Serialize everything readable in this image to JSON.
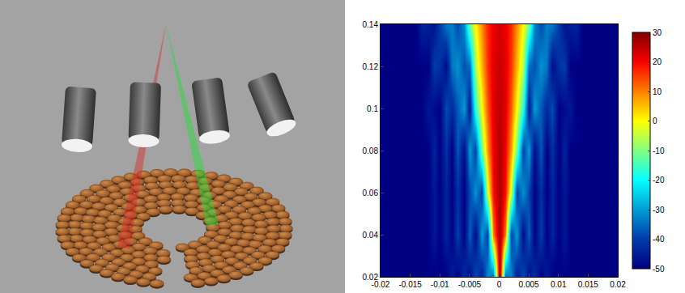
{
  "chart_data": {
    "type": "heatmap",
    "x": [
      -0.02,
      -0.019,
      -0.018,
      -0.017,
      -0.016,
      -0.015,
      -0.014,
      -0.013,
      -0.012,
      -0.011,
      -0.01,
      -0.009,
      -0.008,
      -0.007,
      -0.006,
      -0.005,
      -0.004,
      -0.003,
      -0.002,
      -0.001,
      0,
      0.001,
      0.002,
      0.003,
      0.004,
      0.005,
      0.006,
      0.007,
      0.008,
      0.009,
      0.01,
      0.011,
      0.012,
      0.013,
      0.014,
      0.015,
      0.016,
      0.017,
      0.018,
      0.019,
      0.02
    ],
    "y": [
      0.02,
      0.04,
      0.06,
      0.08,
      0.1,
      0.12,
      0.14
    ],
    "z": [
      [
        -50,
        -50,
        -50,
        -50,
        -50,
        -50,
        -50,
        -50,
        -50,
        -50,
        -50,
        -50,
        -45,
        -50,
        -42,
        -48,
        -38,
        -45,
        -32,
        -35,
        30,
        -35,
        -32,
        -45,
        -38,
        -48,
        -42,
        -50,
        -45,
        -50,
        -50,
        -50,
        -50,
        -50,
        -50,
        -50,
        -50,
        -50,
        -50,
        -50,
        -50
      ],
      [
        -50,
        -50,
        -50,
        -50,
        -50,
        -50,
        -50,
        -50,
        -50,
        -46,
        -50,
        -44,
        -50,
        -40,
        -50,
        -36,
        -48,
        -30,
        -40,
        10,
        28,
        10,
        -40,
        -30,
        -48,
        -36,
        -50,
        -40,
        -50,
        -44,
        -50,
        -46,
        -50,
        -50,
        -50,
        -50,
        -50,
        -50,
        -50,
        -50,
        -50
      ],
      [
        -50,
        -50,
        -50,
        -50,
        -50,
        -50,
        -50,
        -50,
        -50,
        -46,
        -50,
        -44,
        -50,
        -42,
        -50,
        -39,
        -31,
        -40,
        -3,
        19,
        27,
        19,
        -3,
        -40,
        -31,
        -39,
        -50,
        -42,
        -50,
        -44,
        -50,
        -46,
        -50,
        -50,
        -50,
        -50,
        -50,
        -50,
        -50,
        -50,
        -50
      ],
      [
        -50,
        -50,
        -50,
        -50,
        -50,
        -50,
        -50,
        -50,
        -50,
        -44,
        -50,
        -42,
        -50,
        -37,
        -48,
        -30,
        -40,
        -11,
        8,
        21,
        26,
        21,
        8,
        -11,
        -40,
        -30,
        -48,
        -37,
        -50,
        -42,
        -50,
        -44,
        -50,
        -50,
        -50,
        -50,
        -50,
        -50,
        -50,
        -50,
        -50
      ],
      [
        -50,
        -50,
        -50,
        -50,
        -50,
        -50,
        -50,
        -50,
        -46,
        -48,
        -50,
        -38,
        -43,
        -37,
        -30,
        -45,
        -17,
        0,
        13,
        22,
        25,
        22,
        13,
        0,
        -17,
        -45,
        -30,
        -37,
        -43,
        -38,
        -50,
        -48,
        -46,
        -50,
        -50,
        -50,
        -50,
        -50,
        -50,
        -50,
        -50
      ],
      [
        -50,
        -50,
        -50,
        -50,
        -50,
        -50,
        -50,
        -50,
        -50,
        -40,
        -42,
        -48,
        -34,
        -31,
        -38,
        -35,
        -6,
        6,
        16,
        22,
        24,
        22,
        16,
        6,
        -6,
        -35,
        -38,
        -31,
        -34,
        -48,
        -42,
        -40,
        -50,
        -50,
        -50,
        -50,
        -50,
        -50,
        -50,
        -50,
        -50
      ],
      [
        -50,
        -50,
        -50,
        -50,
        -50,
        -50,
        -50,
        -44,
        -45,
        -47,
        -40,
        -34,
        -33,
        -39,
        -32,
        -11,
        0,
        9,
        17,
        21,
        23,
        21,
        17,
        9,
        0,
        -11,
        -32,
        -39,
        -33,
        -34,
        -40,
        -47,
        -45,
        -44,
        -50,
        -50,
        -50,
        -50,
        -50,
        -50,
        -50
      ]
    ],
    "xlim": [
      -0.02,
      0.02
    ],
    "ylim": [
      0.02,
      0.14
    ],
    "xticks": [
      -0.02,
      -0.015,
      -0.01,
      -0.005,
      0,
      0.005,
      0.01,
      0.015,
      0.02
    ],
    "yticks": [
      0.02,
      0.04,
      0.06,
      0.08,
      0.1,
      0.12,
      0.14
    ],
    "zlim": [
      -50,
      30
    ],
    "zticks": [
      -50,
      -40,
      -30,
      -20,
      -10,
      0,
      10,
      20,
      30
    ]
  }
}
